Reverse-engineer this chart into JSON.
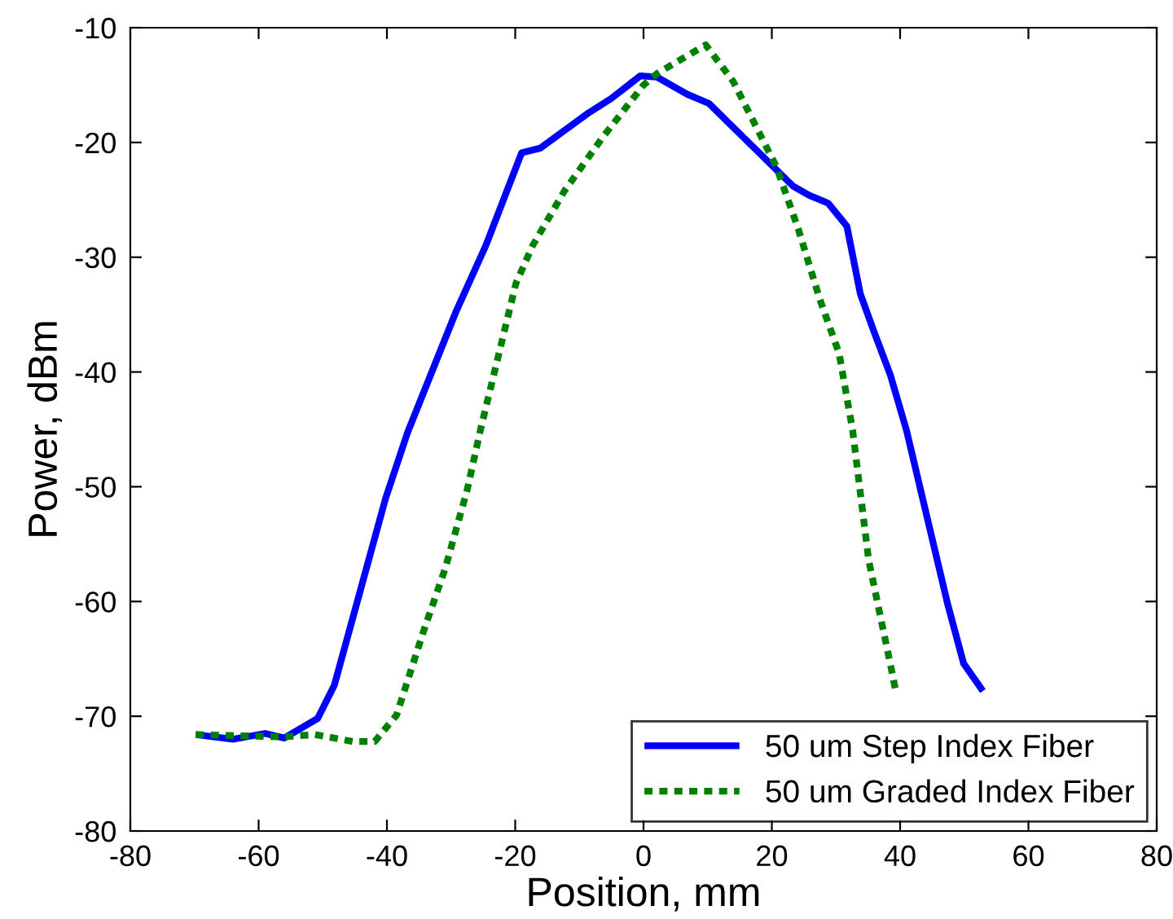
{
  "chart_data": {
    "type": "line",
    "xlabel": "Position, mm",
    "ylabel": "Power, dBm",
    "xlim": [
      -80,
      80
    ],
    "xticks": [
      -80,
      -60,
      -40,
      -20,
      0,
      20,
      40,
      60,
      80
    ],
    "ylim": [
      -80,
      -10
    ],
    "yticks": [
      -80,
      -70,
      -60,
      -50,
      -40,
      -30,
      -20,
      -10
    ],
    "grid": false,
    "legend": "bottom right",
    "marker": "none",
    "series": [
      {
        "name": "50 um Step Index Fiber",
        "color": "#0000ff",
        "line_style": "solid",
        "x": [
          -69.8,
          -64,
          -59,
          -56,
          -50.8,
          -48.2,
          -40.2,
          -36.8,
          -29.2,
          -24.6,
          -19,
          -16.1,
          -8.5,
          -5.1,
          -0.5,
          2.1,
          6.8,
          10.2,
          23.3,
          25.8,
          28.8,
          31.7,
          33.8,
          36,
          38.5,
          41,
          47.4,
          49.9,
          52.9
        ],
        "values": [
          -71.6,
          -72.0,
          -71.5,
          -71.9,
          -70.2,
          -67.3,
          -51.0,
          -45.3,
          -34.7,
          -29.0,
          -20.9,
          -20.5,
          -17.4,
          -16.2,
          -14.2,
          -14.3,
          -15.8,
          -16.6,
          -23.8,
          -24.6,
          -25.3,
          -27.3,
          -33.2,
          -36.6,
          -40.3,
          -45.1,
          -60.2,
          -65.4,
          -67.8
        ]
      },
      {
        "name": "50 um Graded Index Fiber",
        "color": "#008000",
        "line_style": "dotted",
        "x": [
          -69.8,
          -56.3,
          -51.2,
          -45.3,
          -41.9,
          -38.5,
          -34.3,
          -30.9,
          -27.5,
          -25.4,
          -19.9,
          -17.3,
          -12.3,
          -6.3,
          0,
          2.1,
          9.7,
          14,
          20.7,
          24.1,
          27.5,
          30.5,
          32.6,
          35.1,
          38.9,
          39.3
        ],
        "values": [
          -71.6,
          -71.8,
          -71.6,
          -72.2,
          -72.2,
          -69.9,
          -62.6,
          -57.1,
          -50.3,
          -45.0,
          -32.3,
          -29.0,
          -24.2,
          -19.5,
          -15.0,
          -14.0,
          -11.5,
          -14.7,
          -22.1,
          -27.5,
          -33.7,
          -38.4,
          -45.1,
          -56.4,
          -66.6,
          -67.8
        ]
      }
    ]
  }
}
